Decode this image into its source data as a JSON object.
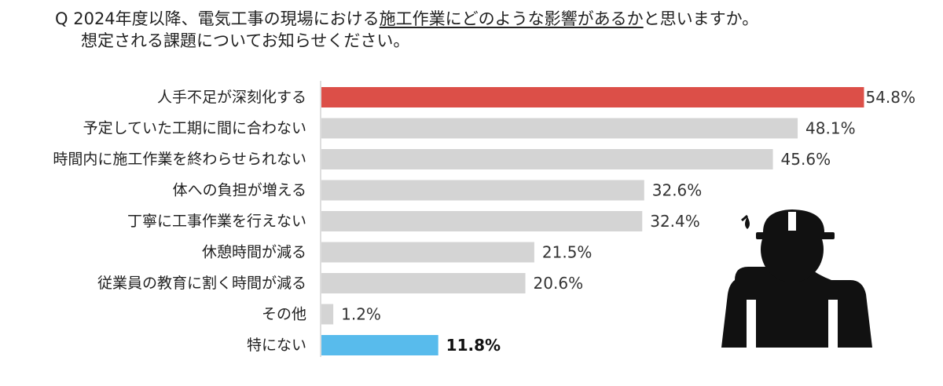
{
  "question": {
    "prefix": "Q",
    "line1_before": "2024年度以降、電気工事の現場における",
    "line1_underlined": "施工作業にどのような影響があるか",
    "line1_after": "と思いますか。",
    "line2": "想定される課題についてお知らせください。"
  },
  "chart_data": {
    "type": "bar",
    "orientation": "horizontal",
    "categories": [
      "人手不足が深刻化する",
      "予定していた工期に間に合わない",
      "時間内に施工作業を終わらせられない",
      "体への負担が増える",
      "丁寧に工事作業を行えない",
      "休憩時間が減る",
      "従業員の教育に割く時間が減る",
      "その他",
      "特にない"
    ],
    "values": [
      54.8,
      48.1,
      45.6,
      32.6,
      32.4,
      21.5,
      20.6,
      1.2,
      11.8
    ],
    "value_labels": [
      "54.8%",
      "48.1%",
      "45.6%",
      "32.6%",
      "32.4%",
      "21.5%",
      "20.6%",
      "1.2%",
      "11.8%"
    ],
    "bar_colors": [
      "#dc4f48",
      "#d4d4d4",
      "#d4d4d4",
      "#d4d4d4",
      "#d4d4d4",
      "#d4d4d4",
      "#d4d4d4",
      "#d4d4d4",
      "#58bbec"
    ],
    "highlight": [
      true,
      false,
      false,
      false,
      false,
      false,
      false,
      false,
      true
    ],
    "xlim": [
      0,
      55
    ],
    "grid": false,
    "legend": "none"
  },
  "illustration": {
    "icon": "construction-worker-hardhat-icon",
    "color": "#111111"
  }
}
